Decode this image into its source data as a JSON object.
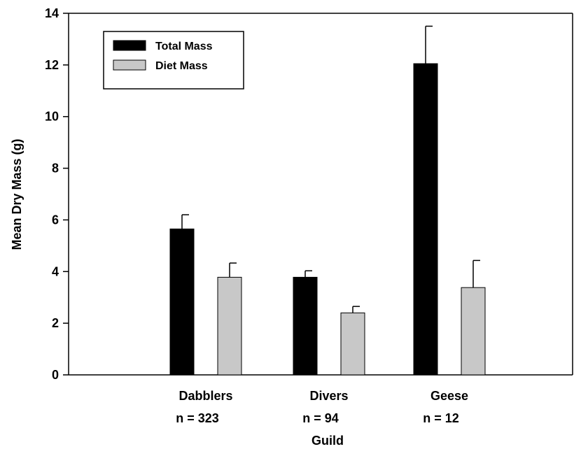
{
  "chart_data": {
    "type": "bar",
    "title": "",
    "xlabel": "Guild",
    "ylabel": "Mean Dry Mass (g)",
    "ylim": [
      0,
      14
    ],
    "yticks": [
      0,
      2,
      4,
      6,
      8,
      10,
      12,
      14
    ],
    "categories": [
      "Dabblers",
      "Divers",
      "Geese"
    ],
    "category_sublabels": [
      "n = 323",
      "n = 94",
      "n = 12"
    ],
    "series": [
      {
        "name": "Total Mass",
        "color": "#000000",
        "values": [
          5.65,
          3.78,
          12.05
        ],
        "errors": [
          0.55,
          0.25,
          1.45
        ]
      },
      {
        "name": "Diet Mass",
        "color": "#c8c8c8",
        "values": [
          3.78,
          2.4,
          3.38
        ],
        "errors": [
          0.55,
          0.25,
          1.05
        ]
      }
    ],
    "legend_position": "top-left",
    "grid": false
  }
}
